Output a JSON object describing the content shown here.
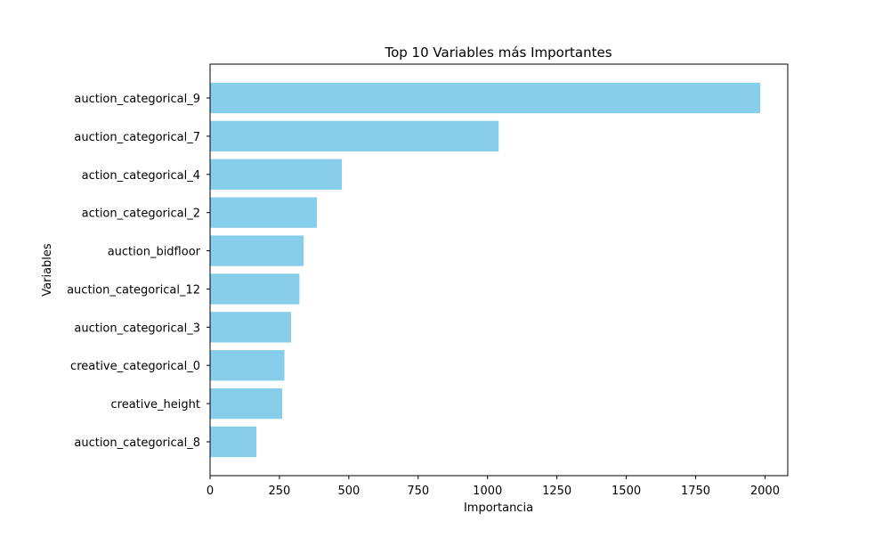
{
  "chart_data": {
    "type": "bar",
    "orientation": "horizontal",
    "title": "Top 10 Variables más Importantes",
    "xlabel": "Importancia",
    "ylabel": "Variables",
    "categories": [
      "auction_categorical_9",
      "auction_categorical_7",
      "action_categorical_4",
      "action_categorical_2",
      "auction_bidfloor",
      "auction_categorical_12",
      "auction_categorical_3",
      "creative_categorical_0",
      "creative_height",
      "auction_categorical_8"
    ],
    "values": [
      1983,
      1040,
      475,
      385,
      337,
      322,
      292,
      268,
      260,
      167
    ],
    "xlim": [
      0,
      2082
    ],
    "xticks": [
      0,
      250,
      500,
      750,
      1000,
      1250,
      1500,
      1750,
      2000
    ],
    "xtick_labels": [
      "0",
      "250",
      "500",
      "750",
      "1000",
      "1250",
      "1500",
      "1750",
      "2000"
    ],
    "grid": false,
    "legend": "none",
    "bar_color": "#87ceeb"
  }
}
